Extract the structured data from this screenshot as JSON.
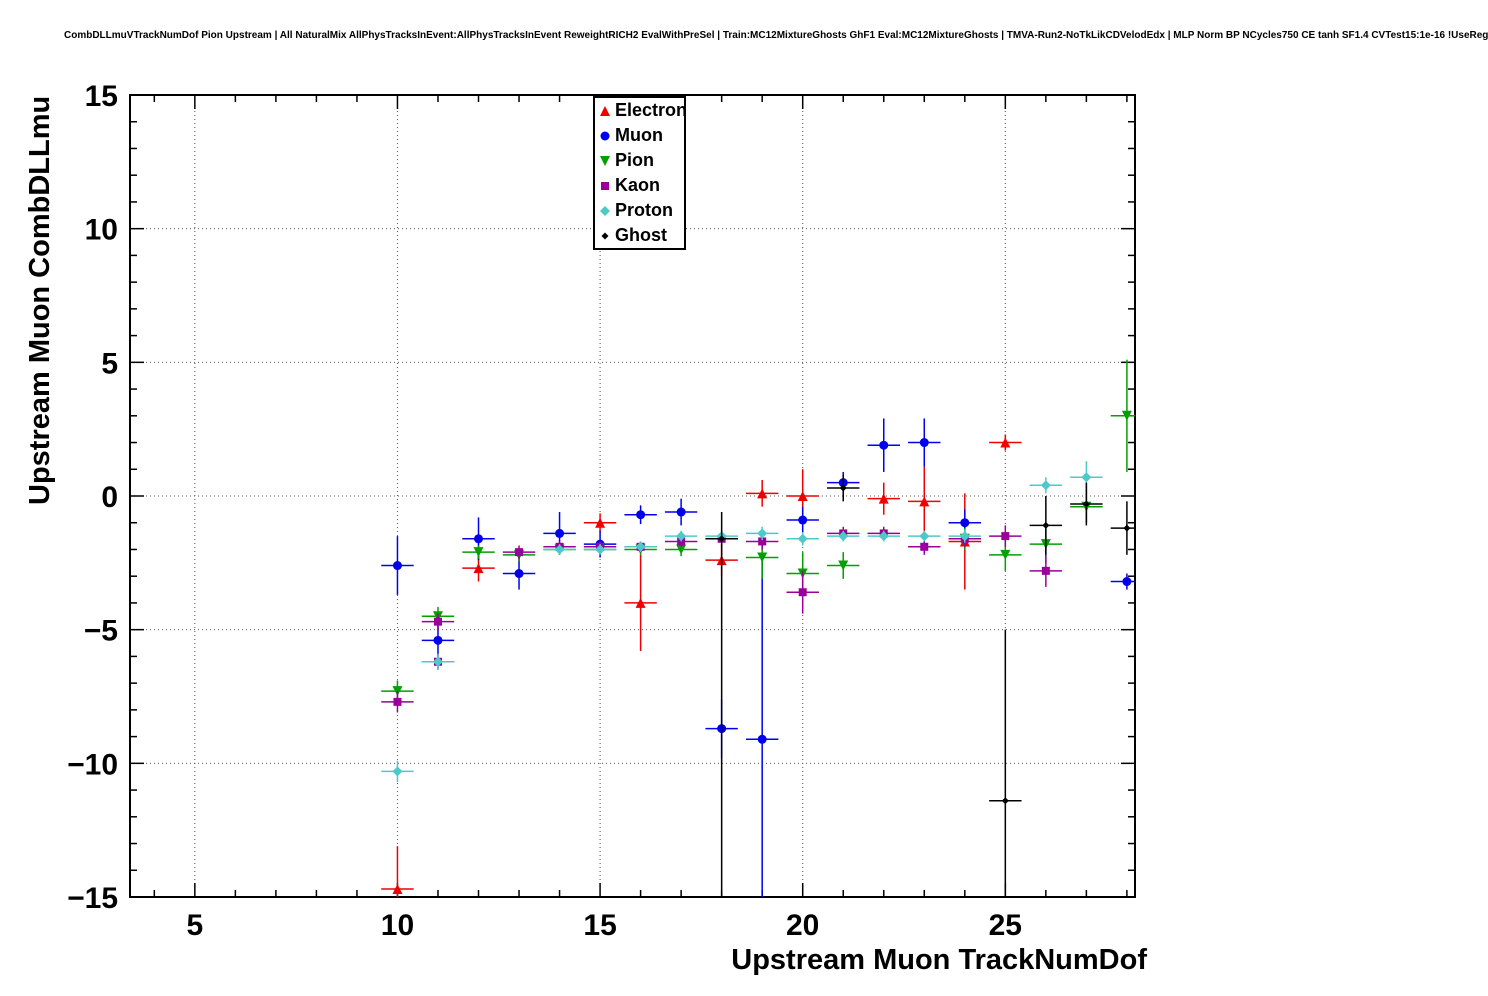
{
  "header": {
    "title": "CombDLLmuVTrackNumDof Pion Upstream | All NaturalMix AllPhysTracksInEvent:AllPhysTracksInEvent ReweightRICH2 EvalWithPreSel | Train:MC12MixtureGhosts GhF1 Eval:MC12MixtureGhosts | TMVA-Run2-NoTkLikCDVelodEdx | MLP Norm BP NCycles750 CE tanh SF1.4 CVTest15:1e-16 !UseReg"
  },
  "chart_data": {
    "type": "scatter",
    "title": "",
    "xlabel": "Upstream Muon TrackNumDof",
    "ylabel": "Upstream Muon CombDLLmu",
    "xlim": [
      3.4,
      28.2
    ],
    "ylim": [
      -15,
      15
    ],
    "xticks": [
      5,
      10,
      15,
      20,
      25
    ],
    "yticks": [
      -15,
      -10,
      -5,
      0,
      5,
      10,
      15
    ],
    "grid": "dotted",
    "legend_position": "top-center",
    "point_format": "[x, y, yerr_low, yerr_high], xerr default 0.4",
    "series": [
      {
        "name": "Electron",
        "marker": "triangle-up",
        "color": "#ee0000",
        "xerr": 0.4,
        "points": [
          [
            10,
            -14.7,
            1.6,
            1.6
          ],
          [
            12,
            -2.7,
            0.5,
            0.5
          ],
          [
            15,
            -1.0,
            0.35,
            0.35
          ],
          [
            16,
            -4.0,
            1.8,
            1.8
          ],
          [
            18,
            -2.4,
            0.6,
            0.6
          ],
          [
            19,
            0.1,
            0.5,
            0.5
          ],
          [
            20,
            0.0,
            1.0,
            1.0
          ],
          [
            22,
            -0.1,
            0.6,
            0.6
          ],
          [
            23,
            -0.2,
            1.3,
            1.3
          ],
          [
            24,
            -1.7,
            1.8,
            1.8
          ],
          [
            25,
            2.0,
            0.3,
            0.3
          ]
        ]
      },
      {
        "name": "Muon",
        "marker": "circle",
        "color": "#0000ee",
        "xerr": 0.4,
        "points": [
          [
            10,
            -2.6,
            1.1,
            1.1
          ],
          [
            11,
            -5.4,
            0.6,
            0.6
          ],
          [
            12,
            -1.6,
            0.8,
            0.8
          ],
          [
            13,
            -2.9,
            0.6,
            0.6
          ],
          [
            14,
            -1.4,
            0.8,
            0.8
          ],
          [
            15,
            -1.8,
            0.5,
            0.5
          ],
          [
            16,
            -0.7,
            0.35,
            0.35
          ],
          [
            17,
            -0.6,
            0.5,
            0.5
          ],
          [
            18,
            -8.7,
            1.1,
            1.1
          ],
          [
            19,
            -9.1,
            5.9,
            6.7
          ],
          [
            20,
            -0.9,
            0.5,
            0.5
          ],
          [
            21,
            0.5,
            0.4,
            0.4
          ],
          [
            22,
            1.9,
            1.0,
            1.0
          ],
          [
            23,
            2.0,
            0.9,
            0.9
          ],
          [
            24,
            -1.0,
            0.5,
            0.5
          ],
          [
            28,
            -3.2,
            0.3,
            0.3
          ]
        ]
      },
      {
        "name": "Pion",
        "marker": "triangle-down",
        "color": "#00a000",
        "xerr": 0.4,
        "points": [
          [
            10,
            -7.3,
            0.4,
            0.4
          ],
          [
            11,
            -4.5,
            0.35,
            0.35
          ],
          [
            12,
            -2.1,
            0.25,
            0.25
          ],
          [
            13,
            -2.2,
            0.25,
            0.25
          ],
          [
            14,
            -2.0,
            0.2,
            0.2
          ],
          [
            15,
            -2.0,
            0.2,
            0.2
          ],
          [
            16,
            -2.0,
            0.2,
            0.2
          ],
          [
            17,
            -2.0,
            0.25,
            0.25
          ],
          [
            19,
            -2.3,
            0.8,
            0.8
          ],
          [
            20,
            -2.9,
            0.8,
            0.8
          ],
          [
            21,
            -2.6,
            0.5,
            0.5
          ],
          [
            24,
            -1.6,
            0.4,
            0.4
          ],
          [
            25,
            -2.2,
            0.6,
            0.6
          ],
          [
            26,
            -1.8,
            0.7,
            0.7
          ],
          [
            27,
            -0.4,
            0.6,
            0.6
          ],
          [
            28,
            3.0,
            2.1,
            2.1
          ]
        ]
      },
      {
        "name": "Kaon",
        "marker": "square",
        "color": "#990099",
        "xerr": 0.4,
        "points": [
          [
            10,
            -7.7,
            0.4,
            0.4
          ],
          [
            11,
            -4.7,
            0.3,
            0.3
          ],
          [
            11,
            -6.2,
            0.3,
            0.3
          ],
          [
            13,
            -2.1,
            0.25,
            0.25
          ],
          [
            14,
            -1.9,
            0.2,
            0.2
          ],
          [
            15,
            -1.9,
            0.2,
            0.2
          ],
          [
            16,
            -1.9,
            0.2,
            0.2
          ],
          [
            17,
            -1.7,
            0.2,
            0.2
          ],
          [
            18,
            -1.6,
            0.25,
            0.25
          ],
          [
            19,
            -1.7,
            0.3,
            0.3
          ],
          [
            20,
            -3.6,
            0.8,
            0.8
          ],
          [
            21,
            -1.4,
            0.25,
            0.25
          ],
          [
            22,
            -1.4,
            0.25,
            0.25
          ],
          [
            23,
            -1.9,
            0.3,
            0.3
          ],
          [
            24,
            -1.6,
            0.3,
            0.3
          ],
          [
            25,
            -1.5,
            0.4,
            0.4
          ],
          [
            26,
            -2.8,
            0.6,
            0.6
          ]
        ]
      },
      {
        "name": "Proton",
        "marker": "diamond",
        "color": "#4ec9c9",
        "xerr": 0.4,
        "points": [
          [
            10,
            -10.3,
            0.4,
            0.4
          ],
          [
            11,
            -6.2,
            0.3,
            0.3
          ],
          [
            14,
            -2.0,
            0.2,
            0.2
          ],
          [
            15,
            -2.0,
            0.2,
            0.2
          ],
          [
            16,
            -1.9,
            0.2,
            0.2
          ],
          [
            17,
            -1.5,
            0.2,
            0.2
          ],
          [
            18,
            -1.5,
            0.25,
            0.25
          ],
          [
            19,
            -1.4,
            0.25,
            0.25
          ],
          [
            20,
            -1.6,
            0.25,
            0.25
          ],
          [
            21,
            -1.5,
            0.2,
            0.2
          ],
          [
            22,
            -1.5,
            0.2,
            0.2
          ],
          [
            23,
            -1.5,
            0.2,
            0.2
          ],
          [
            24,
            -1.5,
            0.25,
            0.25
          ],
          [
            26,
            0.4,
            0.3,
            0.3
          ],
          [
            27,
            0.7,
            0.6,
            0.6
          ]
        ]
      },
      {
        "name": "Ghost",
        "marker": "small-diamond",
        "color": "#000000",
        "xerr": 0.4,
        "points": [
          [
            18,
            -1.6,
            13.4,
            1.0
          ],
          [
            21,
            0.3,
            0.5,
            0.5
          ],
          [
            25,
            -11.4,
            3.6,
            6.4
          ],
          [
            26,
            -1.1,
            1.1,
            1.1
          ],
          [
            27,
            -0.3,
            0.8,
            0.8
          ],
          [
            28,
            -1.2,
            1.0,
            1.0
          ]
        ]
      }
    ]
  }
}
